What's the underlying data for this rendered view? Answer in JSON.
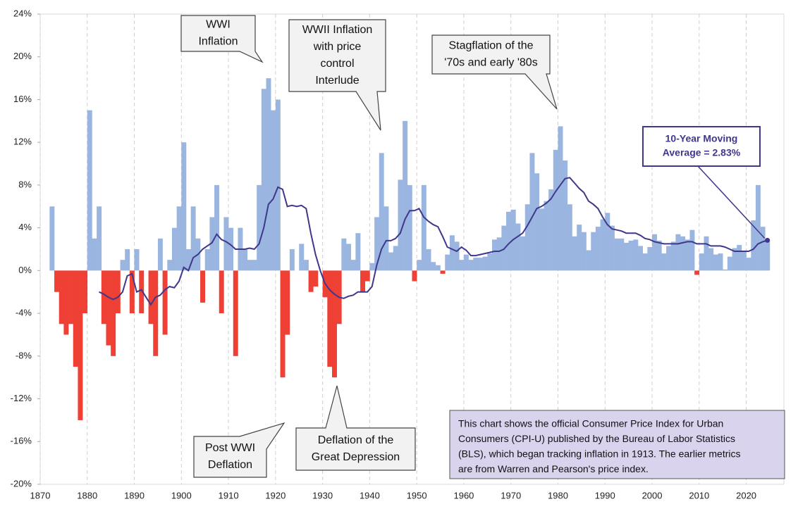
{
  "chart_data": {
    "type": "area",
    "x": [
      1872,
      1873,
      1874,
      1875,
      1876,
      1877,
      1878,
      1879,
      1880,
      1881,
      1882,
      1883,
      1884,
      1885,
      1886,
      1887,
      1888,
      1889,
      1890,
      1891,
      1892,
      1893,
      1894,
      1895,
      1896,
      1897,
      1898,
      1899,
      1900,
      1901,
      1902,
      1903,
      1904,
      1905,
      1906,
      1907,
      1908,
      1909,
      1910,
      1911,
      1912,
      1913,
      1914,
      1915,
      1916,
      1917,
      1918,
      1919,
      1920,
      1921,
      1922,
      1923,
      1924,
      1925,
      1926,
      1927,
      1928,
      1929,
      1930,
      1931,
      1932,
      1933,
      1934,
      1935,
      1936,
      1937,
      1938,
      1939,
      1940,
      1941,
      1942,
      1943,
      1944,
      1945,
      1946,
      1947,
      1948,
      1949,
      1950,
      1951,
      1952,
      1953,
      1954,
      1955,
      1956,
      1957,
      1958,
      1959,
      1960,
      1961,
      1962,
      1963,
      1964,
      1965,
      1966,
      1967,
      1968,
      1969,
      1970,
      1971,
      1972,
      1973,
      1974,
      1975,
      1976,
      1977,
      1978,
      1979,
      1980,
      1981,
      1982,
      1983,
      1984,
      1985,
      1986,
      1987,
      1988,
      1989,
      1990,
      1991,
      1992,
      1993,
      1994,
      1995,
      1996,
      1997,
      1998,
      1999,
      2000,
      2001,
      2002,
      2003,
      2004,
      2005,
      2006,
      2007,
      2008,
      2009,
      2010,
      2011,
      2012,
      2013,
      2014,
      2015,
      2016,
      2017,
      2018,
      2019,
      2020,
      2021,
      2022,
      2023,
      2024
    ],
    "series": [
      {
        "color": "#9ab6e0",
        "negative_color": "#ee4035",
        "values": [
          6,
          -2,
          -5,
          -6,
          -5,
          -9,
          -14,
          -4,
          15,
          3,
          6,
          -5,
          -7,
          -8,
          -4,
          1,
          2,
          -4,
          2,
          -4,
          0,
          -5,
          -8,
          3,
          -6,
          1,
          4,
          6,
          12,
          2,
          6,
          3,
          -3,
          2,
          5,
          8,
          -4,
          5,
          4,
          -8,
          4,
          2,
          1,
          1,
          8,
          17,
          18,
          15,
          16,
          -10,
          -6,
          2,
          0,
          2.5,
          1,
          -2,
          -1.5,
          0,
          -2.5,
          -9,
          -10,
          -5,
          3,
          2.5,
          1,
          3.5,
          -2,
          -1,
          0.7,
          5,
          11,
          6,
          1.7,
          2.3,
          8.5,
          14,
          8,
          -1,
          1,
          8,
          2,
          0.8,
          0.5,
          -0.3,
          1.5,
          3.3,
          2.7,
          1,
          1.5,
          1,
          1.2,
          1.2,
          1.3,
          1.6,
          2.9,
          3.1,
          4.2,
          5.5,
          5.7,
          4.4,
          3.2,
          6.2,
          11,
          9.1,
          5.8,
          6.5,
          7.6,
          11.3,
          13.5,
          10.3,
          6.2,
          3.2,
          4.3,
          3.6,
          1.9,
          3.6,
          4.1,
          4.8,
          5.4,
          4.2,
          3,
          3,
          2.6,
          2.8,
          2.9,
          2.3,
          1.6,
          2.2,
          3.4,
          2.8,
          1.6,
          2.3,
          2.7,
          3.4,
          3.2,
          2.9,
          3.8,
          -0.4,
          1.6,
          3.2,
          2.1,
          1.5,
          1.6,
          0.1,
          1.3,
          2.1,
          2.4,
          1.8,
          1.2,
          4.7,
          8,
          4.1,
          2.9
        ]
      },
      {
        "color": "#3f378c",
        "values": [
          null,
          null,
          null,
          null,
          null,
          null,
          null,
          null,
          null,
          null,
          -2,
          -2.2,
          -2.5,
          -2.7,
          -2.5,
          -2,
          -0.5,
          -0.3,
          -2,
          -1.8,
          -2.5,
          -3.2,
          -2.5,
          -2.3,
          -1.8,
          -1.5,
          -1.6,
          -1,
          0.3,
          0,
          1.2,
          1.5,
          2,
          2.3,
          2.6,
          3.4,
          2.9,
          2.7,
          2.4,
          2,
          2,
          2,
          2.1,
          2,
          2.5,
          4,
          6.2,
          6.7,
          7.8,
          7.6,
          6,
          6.1,
          6,
          6.1,
          5.8,
          3.5,
          1.5,
          0,
          -1.2,
          -1.8,
          -2.2,
          -2.5,
          -2.6,
          -2.4,
          -2.3,
          -2,
          -2,
          -2,
          -1.5,
          0.5,
          2,
          2.8,
          2.8,
          3,
          3.5,
          4.8,
          5.6,
          5.6,
          5.8,
          5,
          4.6,
          4.3,
          4.1,
          3.2,
          2.2,
          2,
          1.8,
          2.2,
          1.9,
          1.4,
          1.4,
          1.5,
          1.6,
          1.7,
          1.8,
          1.8,
          2,
          2.5,
          2.9,
          3.2,
          3.5,
          4.2,
          5,
          5.8,
          6,
          6.3,
          6.7,
          7.4,
          8,
          8.6,
          8.7,
          8.2,
          7.7,
          7.3,
          6.5,
          6.2,
          5.8,
          5,
          4.3,
          3.9,
          3.8,
          3.7,
          3.5,
          3.5,
          3.5,
          3.3,
          3,
          2.9,
          2.7,
          2.6,
          2.5,
          2.5,
          2.5,
          2.5,
          2.6,
          2.7,
          2.7,
          2.5,
          2.5,
          2.5,
          2.3,
          2.3,
          2.3,
          2.2,
          2,
          1.8,
          1.8,
          1.8,
          1.8,
          2,
          2.5,
          2.7,
          2.83
        ]
      }
    ],
    "xlim": [
      1870,
      2028
    ],
    "xticks": [
      1870,
      1880,
      1890,
      1900,
      1910,
      1920,
      1930,
      1940,
      1950,
      1960,
      1970,
      1980,
      1990,
      2000,
      2010,
      2020
    ],
    "ylim": [
      -20,
      24
    ],
    "yticks": [
      {
        "value": -20,
        "label": "-20%"
      },
      {
        "value": -16,
        "label": "-16%"
      },
      {
        "value": -12,
        "label": "-12%"
      },
      {
        "value": -8,
        "label": "-8%"
      },
      {
        "value": -4,
        "label": "-4%"
      },
      {
        "value": 0,
        "label": "0%"
      },
      {
        "value": 4,
        "label": "4%"
      },
      {
        "value": 8,
        "label": "8%"
      },
      {
        "value": 12,
        "label": "12%"
      },
      {
        "value": 16,
        "label": "16%"
      },
      {
        "value": 20,
        "label": "20%"
      },
      {
        "value": 24,
        "label": "24%"
      }
    ],
    "grid": "x",
    "annotations": [
      {
        "lines": [
          "WWI",
          "Inflation"
        ]
      },
      {
        "lines": [
          "WWII Inflation",
          "with price",
          "control",
          "Interlude"
        ]
      },
      {
        "lines": [
          "Stagflation of the",
          "'70s and early '80s"
        ]
      },
      {
        "lines": [
          "Post WWI",
          "Deflation"
        ]
      },
      {
        "lines": [
          "Deflation of the",
          "Great Depression"
        ]
      },
      {
        "lines": [
          "10-Year Moving",
          "Average = 2.83%"
        ]
      }
    ],
    "note": [
      "This chart shows the official Consumer Price Index for Urban",
      "Consumers (CPI-U) published by the Bureau of Labor Statistics",
      "(BLS), which began tracking inflation in 1913.  The earlier metrics",
      "are from Warren and Pearson's  price index."
    ]
  }
}
